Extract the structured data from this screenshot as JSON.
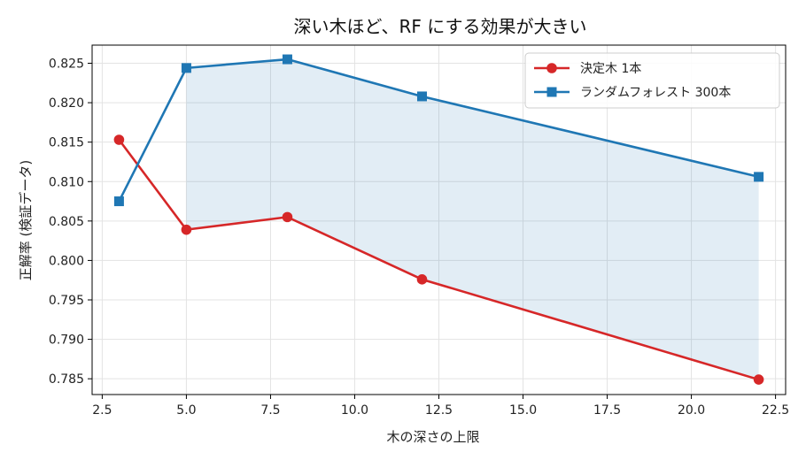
{
  "chart_data": {
    "type": "line",
    "title": "深い木ほど、RF にする効果が大きい",
    "xlabel": "木の深さの上限",
    "ylabel": "正解率 (検証データ)",
    "xlim": [
      2.2,
      22.8
    ],
    "ylim": [
      0.783,
      0.8273
    ],
    "xticks": [
      2.5,
      5.0,
      7.5,
      10.0,
      12.5,
      15.0,
      17.5,
      20.0,
      22.5
    ],
    "xtick_labels": [
      "2.5",
      "5.0",
      "7.5",
      "10.0",
      "12.5",
      "15.0",
      "17.5",
      "20.0",
      "22.5"
    ],
    "yticks": [
      0.785,
      0.79,
      0.795,
      0.8,
      0.805,
      0.81,
      0.815,
      0.82,
      0.825
    ],
    "ytick_labels": [
      "0.785",
      "0.790",
      "0.795",
      "0.800",
      "0.805",
      "0.810",
      "0.815",
      "0.820",
      "0.825"
    ],
    "grid": true,
    "legend_position": "top-right",
    "x": [
      3,
      5,
      8,
      12,
      22
    ],
    "series": [
      {
        "name": "決定木 1本",
        "values": [
          0.8153,
          0.8039,
          0.8055,
          0.7976,
          0.7849
        ],
        "color": "#d62728",
        "marker": "circle"
      },
      {
        "name": "ランダムフォレスト 300本",
        "values": [
          0.8075,
          0.8244,
          0.8255,
          0.8208,
          0.8106
        ],
        "color": "#1f77b4",
        "marker": "square"
      }
    ],
    "shaded_region": {
      "between": [
        "決定木 1本",
        "ランダムフォレスト 300本"
      ],
      "x_from": 5,
      "x_to": 22,
      "color": "#1f77b4"
    }
  }
}
